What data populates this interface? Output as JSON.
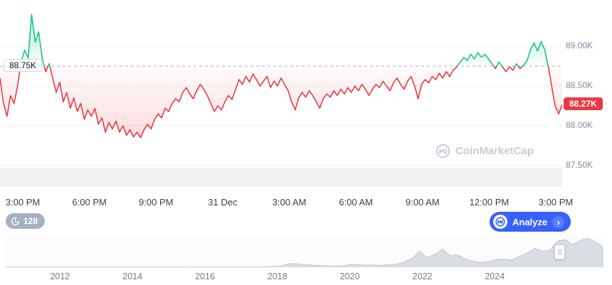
{
  "colors": {
    "green": "#16c784",
    "red": "#ea3943",
    "blue": "#3861fb",
    "grid": "#eff2f5",
    "reference_line": "#a6b0c3",
    "volume_band": "#f0f1f4",
    "navigator_fill": "#d9dde4",
    "navigator_stroke": "#c3cad4"
  },
  "toolbar": {
    "history_count": "128",
    "analyze_label": "Analyze"
  },
  "watermark": {
    "label": "CoinMarketCap"
  },
  "chart_data": [
    {
      "type": "line",
      "name": "btc-price-intraday",
      "unit": "USD thousands",
      "line_colors": {
        "above_reference": "#16c784",
        "below_reference": "#ea3943"
      },
      "reference": {
        "label": "88.75K",
        "value": 88.75
      },
      "current": {
        "label": "88.27K",
        "value": 88.27
      },
      "y_ticks": [
        {
          "label": "89.00K",
          "value": 89.0
        },
        {
          "label": "88.50K",
          "value": 88.5
        },
        {
          "label": "88.00K",
          "value": 88.0
        },
        {
          "label": "87.50K",
          "value": 87.5
        }
      ],
      "x_ticks": [
        "3:00 PM",
        "6:00 PM",
        "9:00 PM",
        "31 Dec",
        "3:00 AM",
        "6:00 AM",
        "9:00 AM",
        "12:00 PM",
        "3:00 PM"
      ],
      "ylim": [
        87.5,
        89.58
      ],
      "values": [
        88.6,
        88.28,
        88.12,
        88.38,
        88.28,
        88.5,
        88.8,
        88.95,
        88.85,
        89.4,
        89.05,
        89.18,
        88.85,
        88.68,
        88.78,
        88.6,
        88.42,
        88.55,
        88.3,
        88.42,
        88.22,
        88.35,
        88.18,
        88.28,
        88.08,
        88.2,
        88.12,
        88.22,
        88.02,
        88.1,
        87.92,
        88.04,
        87.96,
        88.06,
        87.92,
        88.0,
        87.88,
        87.95,
        87.86,
        87.92,
        87.85,
        87.95,
        88.02,
        87.96,
        88.08,
        88.15,
        88.1,
        88.22,
        88.18,
        88.28,
        88.34,
        88.3,
        88.42,
        88.48,
        88.4,
        88.34,
        88.44,
        88.52,
        88.46,
        88.38,
        88.28,
        88.18,
        88.25,
        88.2,
        88.3,
        88.38,
        88.33,
        88.45,
        88.58,
        88.52,
        88.62,
        88.55,
        88.65,
        88.58,
        88.5,
        88.56,
        88.62,
        88.48,
        88.56,
        88.5,
        88.6,
        88.52,
        88.44,
        88.3,
        88.2,
        88.35,
        88.42,
        88.36,
        88.44,
        88.38,
        88.3,
        88.22,
        88.34,
        88.4,
        88.36,
        88.44,
        88.38,
        88.46,
        88.4,
        88.48,
        88.42,
        88.5,
        88.44,
        88.52,
        88.46,
        88.38,
        88.46,
        88.52,
        88.48,
        88.56,
        88.5,
        88.44,
        88.54,
        88.6,
        88.52,
        88.46,
        88.56,
        88.62,
        88.5,
        88.34,
        88.52,
        88.58,
        88.54,
        88.62,
        88.58,
        88.66,
        88.6,
        88.68,
        88.62,
        88.7,
        88.74,
        88.8,
        88.86,
        88.82,
        88.9,
        88.84,
        88.92,
        88.86,
        88.9,
        88.84,
        88.78,
        88.72,
        88.8,
        88.74,
        88.68,
        88.74,
        88.7,
        88.78,
        88.72,
        88.76,
        88.82,
        88.96,
        89.04,
        88.94,
        89.06,
        88.96,
        88.75,
        88.5,
        88.25,
        88.15,
        88.27
      ]
    },
    {
      "type": "area",
      "name": "history-navigator",
      "values_unit": "fraction of all-time max price",
      "x_range_years": [
        2010.5,
        2027
      ],
      "x_ticks": [
        {
          "label": "2012",
          "year": 2012
        },
        {
          "label": "2014",
          "year": 2014
        },
        {
          "label": "2016",
          "year": 2016
        },
        {
          "label": "2018",
          "year": 2018
        },
        {
          "label": "2020",
          "year": 2020
        },
        {
          "label": "2022",
          "year": 2022
        },
        {
          "label": "2024",
          "year": 2024
        }
      ],
      "ylim": [
        0,
        1
      ],
      "values": [
        0.004,
        0.004,
        0.004,
        0.006,
        0.005,
        0.004,
        0.004,
        0.004,
        0.004,
        0.004,
        0.005,
        0.005,
        0.006,
        0.008,
        0.01,
        0.008,
        0.01,
        0.012,
        0.009,
        0.006,
        0.006,
        0.005,
        0.004,
        0.003,
        0.003,
        0.003,
        0.004,
        0.005,
        0.005,
        0.005,
        0.007,
        0.008,
        0.009,
        0.012,
        0.015,
        0.03,
        0.05,
        0.13,
        0.12,
        0.09,
        0.07,
        0.06,
        0.04,
        0.04,
        0.05,
        0.1,
        0.09,
        0.07,
        0.08,
        0.06,
        0.09,
        0.1,
        0.18,
        0.3,
        0.55,
        0.33,
        0.45,
        0.62,
        0.4,
        0.42,
        0.28,
        0.2,
        0.16,
        0.2,
        0.26,
        0.28,
        0.25,
        0.38,
        0.48,
        0.65,
        0.56,
        0.58,
        0.9,
        0.95,
        0.78,
        0.92,
        1.0,
        0.85,
        0.7
      ]
    }
  ]
}
